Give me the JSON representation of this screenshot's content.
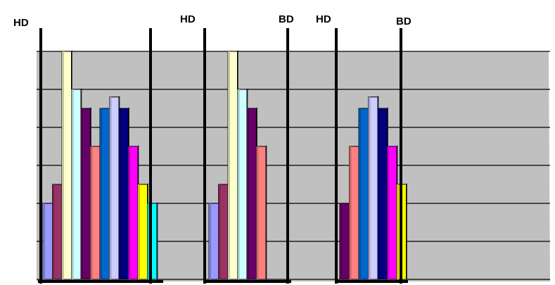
{
  "chart_data": {
    "type": "bar",
    "style": "3d-column",
    "title": "",
    "xlabel": "",
    "ylabel": "",
    "ylim": [
      0,
      6
    ],
    "grid": true,
    "legend": "none",
    "colors": {
      "plot_background": "#c0c0c0",
      "gridline": "#000000",
      "marker_line": "#000000"
    },
    "markers": [
      "HD",
      "HD",
      "BD",
      "HD",
      "BD"
    ],
    "groups": [
      {
        "bars": [
          {
            "value": 2.0,
            "color": "#9999ff"
          },
          {
            "value": 2.5,
            "color": "#993366"
          },
          {
            "value": 6.0,
            "color": "#ffffcc"
          },
          {
            "value": 5.0,
            "color": "#ccffff"
          },
          {
            "value": 4.5,
            "color": "#660066"
          },
          {
            "value": 3.5,
            "color": "#ff8080"
          },
          {
            "value": 4.5,
            "color": "#0066cc"
          },
          {
            "value": 4.8,
            "color": "#ccccff"
          },
          {
            "value": 4.5,
            "color": "#000080"
          },
          {
            "value": 3.5,
            "color": "#ff00ff"
          },
          {
            "value": 2.5,
            "color": "#ffff00"
          },
          {
            "value": 2.0,
            "color": "#00ffff"
          }
        ]
      },
      {
        "bars": [
          {
            "value": 2.0,
            "color": "#9999ff"
          },
          {
            "value": 2.5,
            "color": "#993366"
          },
          {
            "value": 6.0,
            "color": "#ffffcc"
          },
          {
            "value": 5.0,
            "color": "#ccffff"
          },
          {
            "value": 4.5,
            "color": "#660066"
          },
          {
            "value": 3.5,
            "color": "#ff8080"
          }
        ]
      },
      {
        "bars": [
          {
            "value": 2.0,
            "color": "#660066"
          },
          {
            "value": 3.5,
            "color": "#ff8080"
          },
          {
            "value": 4.5,
            "color": "#0066cc"
          },
          {
            "value": 4.8,
            "color": "#ccccff"
          },
          {
            "value": 4.5,
            "color": "#000080"
          },
          {
            "value": 3.5,
            "color": "#ff00ff"
          },
          {
            "value": 2.5,
            "color": "#ffff00"
          }
        ]
      }
    ]
  }
}
